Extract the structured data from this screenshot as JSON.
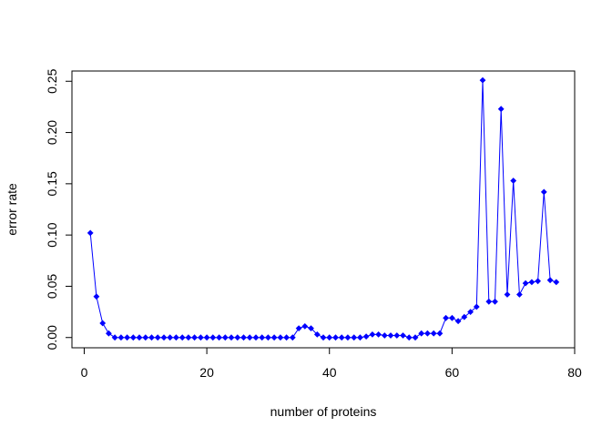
{
  "chart_data": {
    "type": "line",
    "title": "",
    "xlabel": "number of proteins",
    "ylabel": "error rate",
    "xlim": [
      -2,
      80
    ],
    "ylim": [
      -0.01,
      0.26
    ],
    "x_ticks": [
      "0",
      "20",
      "40",
      "60",
      "80"
    ],
    "y_ticks": [
      "0.00",
      "0.05",
      "0.10",
      "0.15",
      "0.20",
      "0.25"
    ],
    "grid": false,
    "legend": "none",
    "series_color": "#0000ff",
    "marker": "diamond",
    "series": [
      {
        "x": [
          1,
          2,
          3,
          4,
          5,
          6,
          7,
          8,
          9,
          10,
          11,
          12,
          13,
          14,
          15,
          16,
          17,
          18,
          19,
          20,
          21,
          22,
          23,
          24,
          25,
          26,
          27,
          28,
          29,
          30,
          31,
          32,
          33,
          34,
          35,
          36,
          37,
          38,
          39,
          40,
          41,
          42,
          43,
          44,
          45,
          46,
          47,
          48,
          49,
          50,
          51,
          52,
          53,
          54,
          55,
          56,
          57,
          58,
          59,
          60,
          61,
          62,
          63,
          64,
          65,
          66,
          67,
          68,
          69,
          70,
          71,
          72,
          73,
          74,
          75,
          76,
          77
        ],
        "y": [
          0.102,
          0.04,
          0.014,
          0.004,
          0.0,
          0.0,
          0.0,
          0.0,
          0.0,
          0.0,
          0.0,
          0.0,
          0.0,
          0.0,
          0.0,
          0.0,
          0.0,
          0.0,
          0.0,
          0.0,
          0.0,
          0.0,
          0.0,
          0.0,
          0.0,
          0.0,
          0.0,
          0.0,
          0.0,
          0.0,
          0.0,
          0.0,
          0.0,
          0.0,
          0.009,
          0.011,
          0.009,
          0.003,
          0.0,
          0.0,
          0.0,
          0.0,
          0.0,
          0.0,
          0.0,
          0.001,
          0.003,
          0.003,
          0.002,
          0.002,
          0.002,
          0.002,
          0.0,
          0.0,
          0.004,
          0.004,
          0.004,
          0.004,
          0.019,
          0.019,
          0.016,
          0.02,
          0.025,
          0.03,
          0.251,
          0.035,
          0.035,
          0.223,
          0.042,
          0.153,
          0.042,
          0.053,
          0.054,
          0.055,
          0.142,
          0.056,
          0.054
        ]
      }
    ]
  }
}
